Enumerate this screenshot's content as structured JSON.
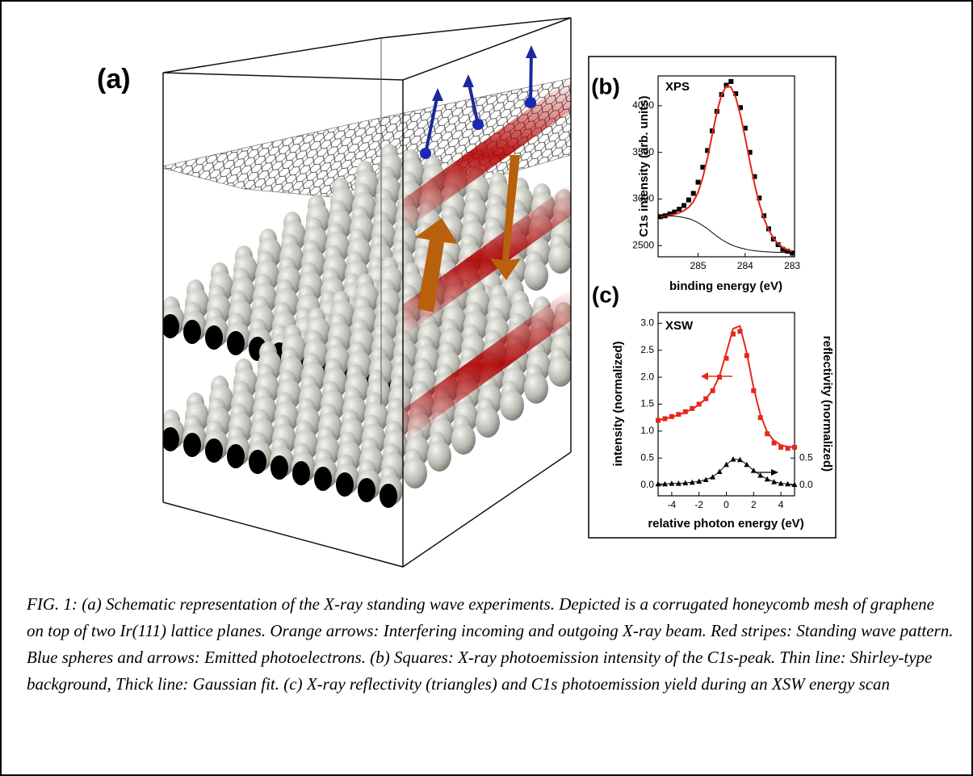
{
  "panel_a_label": "(a)",
  "chart_data": [
    {
      "type": "line",
      "panel_label": "(b)",
      "annotation": "XPS",
      "x_label": "binding energy (eV)",
      "y_label": "C1s intensity (arb. units)",
      "x": [
        285.8,
        285.7,
        285.6,
        285.5,
        285.4,
        285.3,
        285.2,
        285.1,
        285.0,
        284.9,
        284.8,
        284.7,
        284.6,
        284.5,
        284.4,
        284.3,
        284.2,
        284.1,
        284.0,
        283.9,
        283.8,
        283.7,
        283.6,
        283.5,
        283.4,
        283.3,
        283.2,
        283.1,
        283.0
      ],
      "series": [
        {
          "color": "#000000",
          "marker": "square",
          "values": [
            2810,
            2820,
            2840,
            2860,
            2890,
            2930,
            2990,
            3060,
            3180,
            3340,
            3520,
            3730,
            3940,
            4120,
            4220,
            4260,
            4130,
            3980,
            3760,
            3500,
            3240,
            3010,
            2820,
            2680,
            2570,
            2510,
            2460,
            2440,
            2420
          ]
        },
        {
          "color": "#e8261c",
          "marker": "none",
          "line_width": 2,
          "values": [
            2810,
            2818,
            2825,
            2835,
            2850,
            2875,
            2910,
            2970,
            3070,
            3230,
            3440,
            3690,
            3930,
            4120,
            4210,
            4200,
            4090,
            3900,
            3660,
            3400,
            3160,
            2950,
            2790,
            2670,
            2580,
            2520,
            2480,
            2455,
            2440
          ]
        },
        {
          "color": "#000000",
          "marker": "none",
          "line_width": 1,
          "values": [
            2820,
            2820,
            2818,
            2815,
            2810,
            2800,
            2790,
            2770,
            2745,
            2715,
            2680,
            2640,
            2600,
            2565,
            2535,
            2510,
            2490,
            2475,
            2462,
            2452,
            2445,
            2440,
            2435,
            2432,
            2430,
            2428,
            2427,
            2426,
            2425
          ]
        }
      ],
      "xlim": [
        285.85,
        282.95
      ],
      "xticks": [
        285,
        284,
        283
      ],
      "ylim": [
        2380,
        4320
      ],
      "yticks": [
        2500,
        3000,
        3500,
        4000
      ]
    },
    {
      "type": "line",
      "panel_label": "(c)",
      "annotation": "XSW",
      "x_label": "relative photon energy (eV)",
      "y_label": "intensity (normalized)",
      "y2_label": "reflectivity (normalized)",
      "x": [
        -5,
        -4.5,
        -4,
        -3.5,
        -3,
        -2.5,
        -2,
        -1.5,
        -1,
        -0.5,
        0,
        0.5,
        1,
        1.5,
        2,
        2.5,
        3,
        3.5,
        4,
        4.5,
        5
      ],
      "series": [
        {
          "color": "#e8261c",
          "marker": "square",
          "values": [
            1.2,
            1.23,
            1.27,
            1.31,
            1.36,
            1.42,
            1.5,
            1.6,
            1.75,
            2.0,
            2.35,
            2.8,
            2.85,
            2.4,
            1.75,
            1.25,
            0.95,
            0.78,
            0.7,
            0.68,
            0.7
          ]
        },
        {
          "color": "#e8261c",
          "marker": "none",
          "line_width": 2,
          "values": [
            1.2,
            1.23,
            1.26,
            1.3,
            1.35,
            1.41,
            1.49,
            1.6,
            1.76,
            2.02,
            2.45,
            2.9,
            2.95,
            2.45,
            1.8,
            1.3,
            0.98,
            0.82,
            0.74,
            0.71,
            0.7
          ]
        },
        {
          "color": "#000000",
          "marker": "triangle",
          "axis": "y2",
          "values": [
            0.02,
            0.02,
            0.03,
            0.03,
            0.04,
            0.05,
            0.07,
            0.1,
            0.15,
            0.25,
            0.38,
            0.48,
            0.47,
            0.38,
            0.27,
            0.18,
            0.11,
            0.06,
            0.03,
            0.02,
            0.01
          ]
        },
        {
          "color": "#000000",
          "marker": "none",
          "line_width": 1,
          "axis": "y2",
          "values": [
            0.02,
            0.02,
            0.03,
            0.03,
            0.04,
            0.05,
            0.07,
            0.1,
            0.15,
            0.25,
            0.38,
            0.48,
            0.47,
            0.38,
            0.27,
            0.18,
            0.11,
            0.06,
            0.03,
            0.02,
            0.01
          ]
        }
      ],
      "xlim": [
        -5,
        5
      ],
      "xticks": [
        -4,
        -2,
        0,
        2,
        4
      ],
      "ylim": [
        -0.2,
        3.2
      ],
      "yticks": [
        {
          "value": 0,
          "label": "0.0"
        },
        {
          "value": 0.5,
          "label": "0.5"
        },
        {
          "value": 1,
          "label": "1.0"
        },
        {
          "value": 1.5,
          "label": "1.5"
        },
        {
          "value": 2,
          "label": "2.0"
        },
        {
          "value": 2.5,
          "label": "2.5"
        },
        {
          "value": 3,
          "label": "3.0"
        }
      ],
      "y2lim": [
        -0.2,
        3.2
      ],
      "y2ticks": [
        {
          "value": 0,
          "label": "0.0"
        },
        {
          "value": 0.5,
          "label": "0.5"
        }
      ]
    }
  ],
  "caption": "FIG. 1: (a) Schematic representation of the X-ray standing wave experiments. Depicted is a corrugated honeycomb mesh of graphene on top of two Ir(111) lattice planes. Orange arrows: Interfering incoming and outgoing X-ray beam. Red stripes: Standing wave pattern. Blue spheres and arrows: Emitted photoelectrons. (b) Squares: X-ray photoemission intensity of the C1s-peak. Thin line: Shirley-type background, Thick line: Gaussian fit. (c) X-ray reflectivity (triangles) and C1s photoemission yield during an XSW energy scan"
}
